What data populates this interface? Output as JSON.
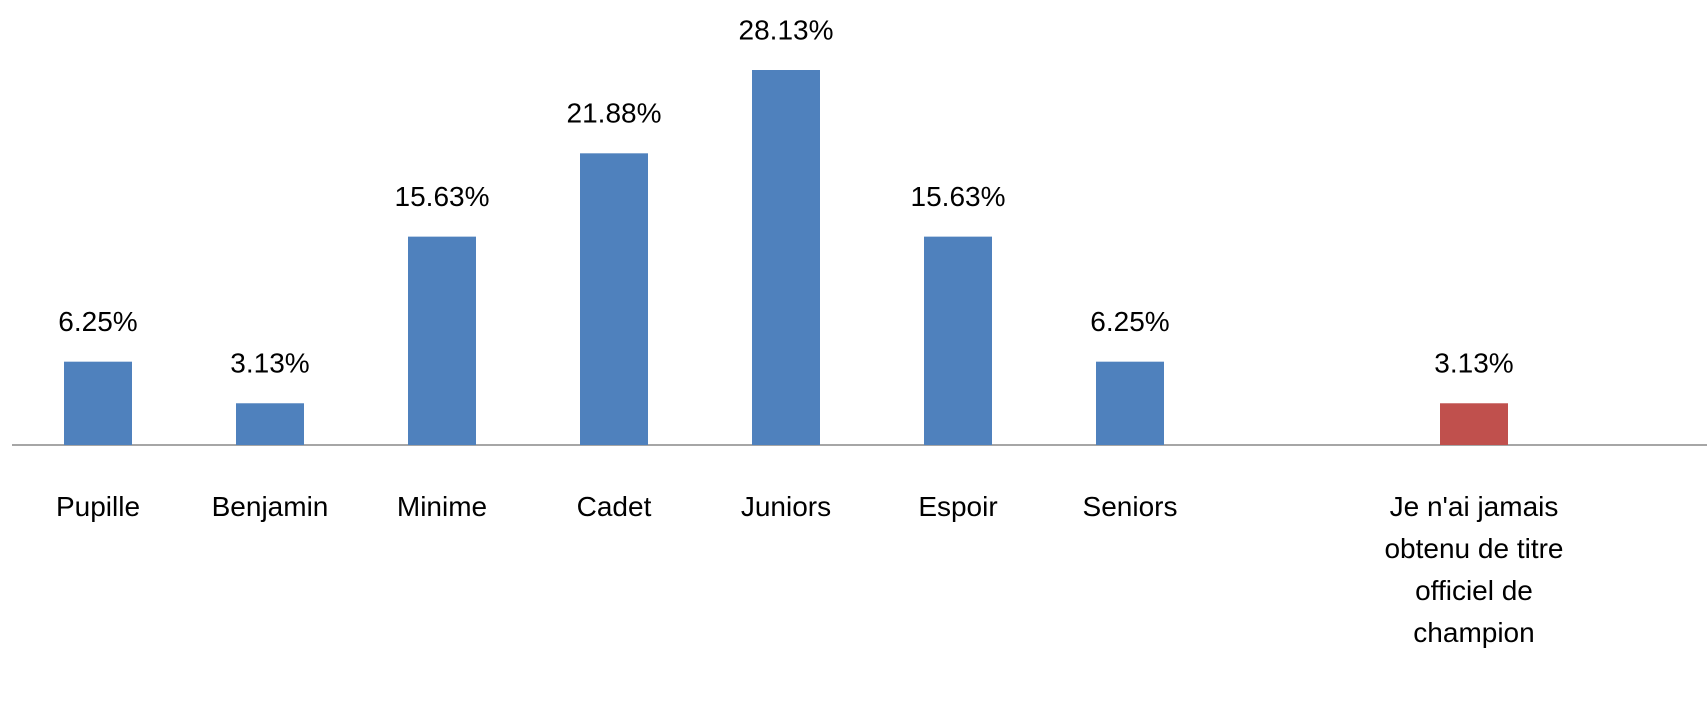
{
  "chart_data": {
    "type": "bar",
    "categories": [
      "Pupille",
      "Benjamin",
      "Minime",
      "Cadet",
      "Juniors",
      "Espoir",
      "Seniors",
      null,
      "Je n'ai jamais obtenu de titre officiel de champion"
    ],
    "values": [
      6.25,
      3.13,
      15.63,
      21.88,
      28.13,
      15.63,
      6.25,
      null,
      3.13
    ],
    "value_labels": [
      "6.25%",
      "3.13%",
      "15.63%",
      "21.88%",
      "28.13%",
      "15.63%",
      "6.25%",
      null,
      "3.13%"
    ],
    "colors": [
      "#4f81bd",
      "#4f81bd",
      "#4f81bd",
      "#4f81bd",
      "#4f81bd",
      "#4f81bd",
      "#4f81bd",
      null,
      "#c0504d"
    ]
  }
}
